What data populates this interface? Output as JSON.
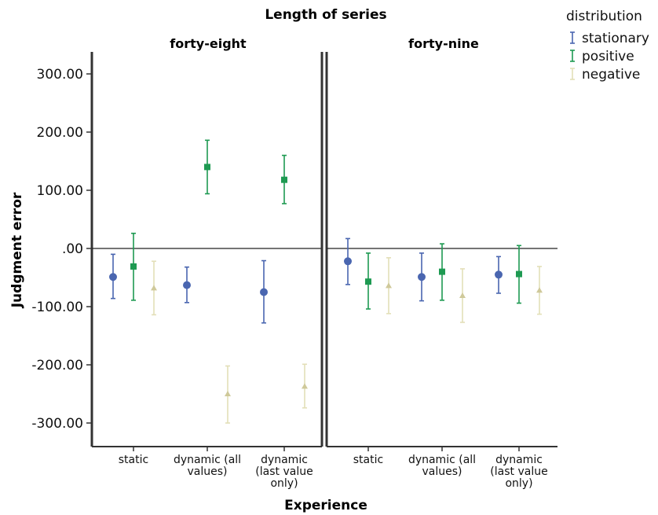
{
  "chart_data": {
    "type": "scatter",
    "subtype": "error-bar",
    "title": "Length of series",
    "xlabel": "Experience",
    "ylabel": "Judgment error",
    "ylim": [
      -330,
      330
    ],
    "yticks": [
      300,
      200,
      100,
      0,
      -100,
      -200,
      -300
    ],
    "ytick_labels": [
      "300.00",
      "200.00",
      "100.00",
      ".00",
      "-100.00",
      "-200.00",
      "-300.00"
    ],
    "reference_line_y": 0,
    "panels": [
      "forty-eight",
      "forty-nine"
    ],
    "categories": [
      [
        "static"
      ],
      [
        "dynamic (all",
        "values)"
      ],
      [
        "dynamic",
        "(last value",
        "only)"
      ]
    ],
    "legend": {
      "title": "distribution",
      "position": "top-right"
    },
    "series": [
      {
        "name": "stationary",
        "color": "#4a66b0",
        "marker": "circle",
        "data": [
          [
            {
              "mean": -49,
              "lo": -86,
              "hi": -10
            },
            {
              "mean": -63,
              "lo": -93,
              "hi": -32
            },
            {
              "mean": -75,
              "lo": -128,
              "hi": -21
            }
          ],
          [
            {
              "mean": -22,
              "lo": -62,
              "hi": 17
            },
            {
              "mean": -49,
              "lo": -90,
              "hi": -8
            },
            {
              "mean": -45,
              "lo": -77,
              "hi": -14
            }
          ]
        ]
      },
      {
        "name": "positive",
        "color": "#1e9a52",
        "marker": "square",
        "data": [
          [
            {
              "mean": -31,
              "lo": -89,
              "hi": 26
            },
            {
              "mean": 140,
              "lo": 94,
              "hi": 186
            },
            {
              "mean": 118,
              "lo": 77,
              "hi": 160
            }
          ],
          [
            {
              "mean": -57,
              "lo": -104,
              "hi": -8
            },
            {
              "mean": -40,
              "lo": -89,
              "hi": 8
            },
            {
              "mean": -44,
              "lo": -94,
              "hi": 5
            }
          ]
        ]
      },
      {
        "name": "negative",
        "color": "#e3dfb8",
        "marker": "triangle",
        "data": [
          [
            {
              "mean": -68,
              "lo": -114,
              "hi": -22
            },
            {
              "mean": -250,
              "lo": -300,
              "hi": -202
            },
            {
              "mean": -237,
              "lo": -274,
              "hi": -199
            }
          ],
          [
            {
              "mean": -64,
              "lo": -112,
              "hi": -16
            },
            {
              "mean": -81,
              "lo": -127,
              "hi": -35
            },
            {
              "mean": -72,
              "lo": -113,
              "hi": -31
            }
          ]
        ]
      }
    ]
  }
}
